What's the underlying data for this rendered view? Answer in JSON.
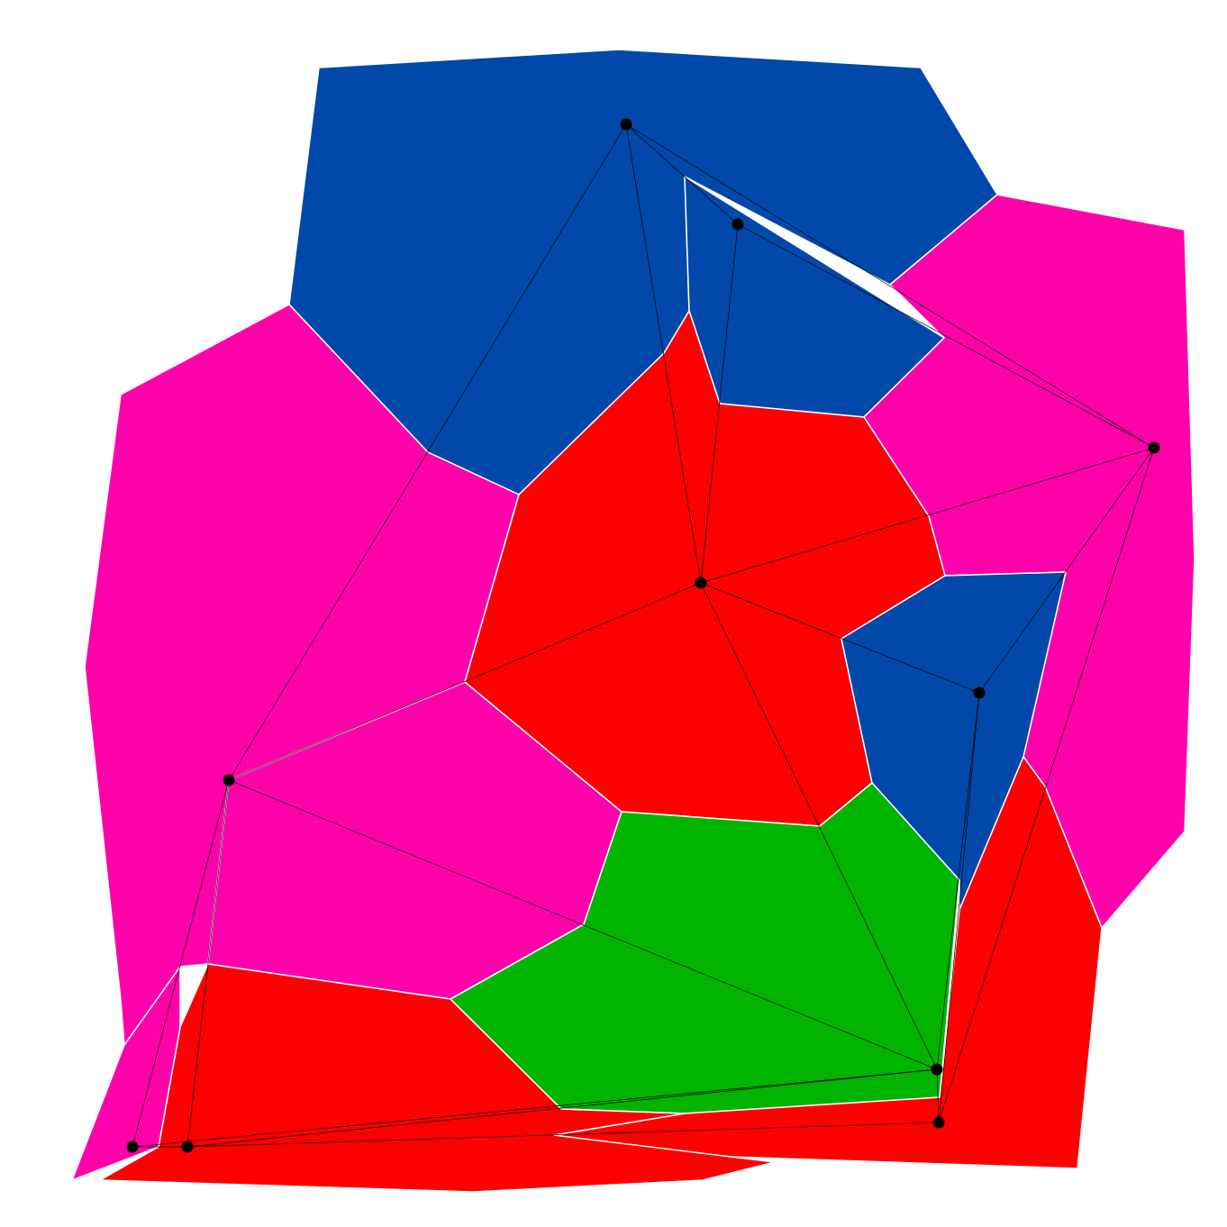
{
  "colors": {
    "blue": "#0048AA",
    "magenta": "#FF00AA",
    "red": "#FF0000",
    "green": "#00B400",
    "edge": "#000000",
    "node": "#000000",
    "border": "#FFFFFF",
    "background": "#FFFFFF"
  },
  "regions": [
    {
      "id": "blue-top",
      "color": "blue"
    },
    {
      "id": "blue-inner-top",
      "color": "blue"
    },
    {
      "id": "magenta-right",
      "color": "magenta"
    },
    {
      "id": "magenta-left",
      "color": "magenta"
    },
    {
      "id": "magenta-center-left",
      "color": "magenta"
    },
    {
      "id": "red-center",
      "color": "red"
    },
    {
      "id": "blue-right-inner",
      "color": "blue"
    },
    {
      "id": "green-lower",
      "color": "green"
    },
    {
      "id": "red-lower-right",
      "color": "red"
    },
    {
      "id": "red-bottom",
      "color": "red"
    },
    {
      "id": "magenta-bottom-left",
      "color": "magenta"
    }
  ],
  "nodes": [
    {
      "id": "n1"
    },
    {
      "id": "n2"
    },
    {
      "id": "n3"
    },
    {
      "id": "n4"
    },
    {
      "id": "n5"
    },
    {
      "id": "n6"
    },
    {
      "id": "n7"
    },
    {
      "id": "n8"
    },
    {
      "id": "n9"
    },
    {
      "id": "n10"
    }
  ],
  "edges": [
    [
      "n1",
      "n2"
    ],
    [
      "n1",
      "n3"
    ],
    [
      "n1",
      "n4"
    ],
    [
      "n1",
      "n5"
    ],
    [
      "n2",
      "n4"
    ],
    [
      "n2",
      "n3"
    ],
    [
      "n3",
      "n4"
    ],
    [
      "n3",
      "n5"
    ],
    [
      "n3",
      "n6"
    ],
    [
      "n3",
      "n7"
    ],
    [
      "n4",
      "n6"
    ],
    [
      "n4",
      "n10"
    ],
    [
      "n5",
      "n7"
    ],
    [
      "n5",
      "n9"
    ],
    [
      "n5",
      "n8"
    ],
    [
      "n6",
      "n7"
    ],
    [
      "n6",
      "n10"
    ],
    [
      "n7",
      "n8"
    ],
    [
      "n7",
      "n9"
    ],
    [
      "n7",
      "n10"
    ],
    [
      "n8",
      "n9"
    ],
    [
      "n9",
      "n10"
    ]
  ]
}
